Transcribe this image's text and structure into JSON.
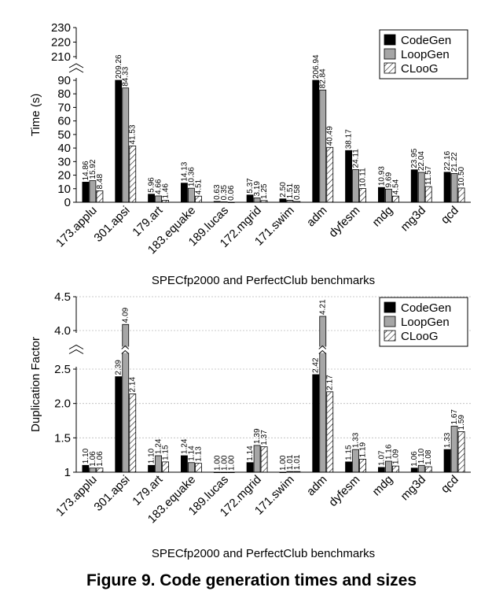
{
  "caption": "Figure 9. Code generation times and sizes",
  "colors": {
    "CodeGen": "#000000",
    "LoopGen": "#a6a6a6",
    "CLooG": "hatch"
  },
  "chart_data": [
    {
      "type": "bar",
      "categories": [
        "173.applu",
        "301.apsi",
        "179.art",
        "183.equake",
        "189.lucas",
        "172.mgrid",
        "171.swim",
        "adm",
        "dyfesm",
        "mdg",
        "mg3d",
        "qcd"
      ],
      "series": [
        {
          "name": "CodeGen",
          "values": [
            14.86,
            209.26,
            5.96,
            14.13,
            0.63,
            5.37,
            2.5,
            206.94,
            38.17,
            10.93,
            23.95,
            22.16
          ]
        },
        {
          "name": "LoopGen",
          "values": [
            15.92,
            84.33,
            4.66,
            10.36,
            0.35,
            3.19,
            1.51,
            82.84,
            24.11,
            9.69,
            22.04,
            21.22
          ]
        },
        {
          "name": "CLooG",
          "values": [
            8.48,
            41.53,
            1.46,
            4.51,
            0.06,
            1.25,
            0.58,
            40.49,
            10.11,
            4.54,
            11.57,
            10.5
          ]
        }
      ],
      "value_labels": [
        [
          "14.86",
          "209.26",
          "5.96",
          "14.13",
          "0.63",
          "5.37",
          "2.50",
          "206.94",
          "38.17",
          "10.93",
          "23.95",
          "22.16"
        ],
        [
          "15.92",
          "84.33",
          "4.66",
          "10.36",
          "0.35",
          "3.19",
          "1.51",
          "82.84",
          "24.11",
          "9.69",
          "22.04",
          "21.22"
        ],
        [
          "8.48",
          "41.53",
          "1.46",
          "4.51",
          "0.06",
          "1.25",
          "0.58",
          "40.49",
          "10.11",
          "4.54",
          "11.57",
          "10.50"
        ]
      ],
      "ylabel": "Time (s)",
      "xlabel": "SPECfp2000 and PerfectClub benchmarks",
      "y_segments": [
        {
          "range": [
            0,
            90
          ],
          "ticks": [
            "0",
            "10",
            "20",
            "30",
            "40",
            "50",
            "60",
            "70",
            "80",
            "90"
          ]
        },
        {
          "range": [
            210,
            230
          ],
          "ticks": [
            "210",
            "220",
            "230"
          ]
        }
      ],
      "axis_break": true,
      "grid": false,
      "legend_position": "top-right"
    },
    {
      "type": "bar",
      "categories": [
        "173.applu",
        "301.apsi",
        "179.art",
        "183.equake",
        "189.lucas",
        "172.mgrid",
        "171.swim",
        "adm",
        "dyfesm",
        "mdg",
        "mg3d",
        "qcd"
      ],
      "series": [
        {
          "name": "CodeGen",
          "values": [
            1.1,
            2.39,
            1.1,
            1.24,
            1.0,
            1.14,
            1.0,
            2.42,
            1.15,
            1.07,
            1.06,
            1.33
          ]
        },
        {
          "name": "LoopGen",
          "values": [
            1.06,
            4.09,
            1.24,
            1.14,
            1.0,
            1.39,
            1.01,
            4.21,
            1.33,
            1.16,
            1.1,
            1.67
          ]
        },
        {
          "name": "CLooG",
          "values": [
            1.06,
            2.14,
            1.15,
            1.13,
            1.0,
            1.37,
            1.01,
            2.17,
            1.19,
            1.09,
            1.08,
            1.59
          ]
        }
      ],
      "value_labels": [
        [
          "1.10",
          "2.39",
          "1.10",
          "1.24",
          "1.00",
          "1.14",
          "1.00",
          "2.42",
          "1.15",
          "1.07",
          "1.06",
          "1.33"
        ],
        [
          "1.06",
          "4.09",
          "1.24",
          "1.14",
          "1.00",
          "1.39",
          "1.01",
          "4.21",
          "1.33",
          "1.16",
          "1.10",
          "1.67"
        ],
        [
          "1.06",
          "2.14",
          "1.15",
          "1.13",
          "1.00",
          "1.37",
          "1.01",
          "2.17",
          "1.19",
          "1.09",
          "1.08",
          "1.59"
        ]
      ],
      "ylabel": "Duplication Factor",
      "xlabel": "SPECfp2000 and PerfectClub benchmarks",
      "y_segments": [
        {
          "range": [
            1,
            2.5
          ],
          "ticks": [
            "1",
            "1.5",
            "2.0",
            "2.5"
          ]
        },
        {
          "range": [
            4.0,
            4.5
          ],
          "ticks": [
            "4.0",
            "4.5"
          ]
        }
      ],
      "axis_break": true,
      "grid": true,
      "legend_position": "top-right"
    }
  ]
}
